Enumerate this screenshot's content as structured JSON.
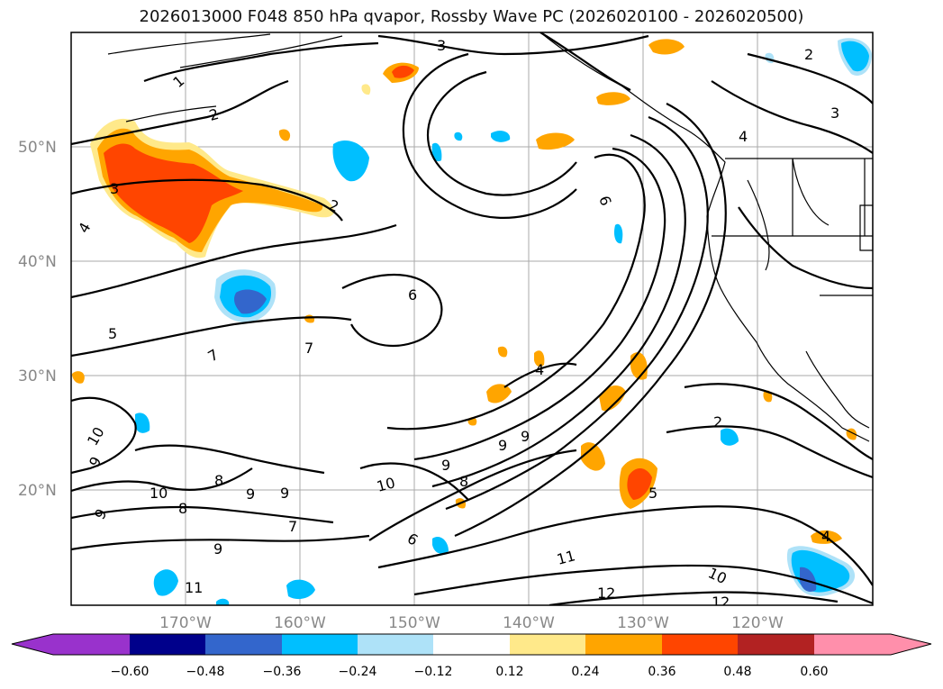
{
  "title": "2026013000 F048 850 hPa qvapor, Rossby Wave PC (2026020100 - 2026020500)",
  "lat_labels": [
    "50°N",
    "40°N",
    "30°N",
    "20°N"
  ],
  "lon_labels": [
    "170°W",
    "160°W",
    "150°W",
    "140°W",
    "130°W",
    "120°W"
  ],
  "contour_labels": [
    "3",
    "2",
    "1",
    "2",
    "3",
    "4",
    "3",
    "2",
    "4",
    "6",
    "5",
    "7",
    "7",
    "4",
    "2",
    "10",
    "9",
    "8",
    "10",
    "9",
    "9",
    "8",
    "7",
    "9",
    "9",
    "9",
    "8",
    "10",
    "6",
    "5",
    "11",
    "11",
    "12",
    "10",
    "12",
    "9",
    "9",
    "4",
    "7",
    "6"
  ],
  "colorbar": {
    "ticks": [
      "−0.60",
      "−0.48",
      "−0.36",
      "−0.24",
      "−0.12",
      "0.12",
      "0.24",
      "0.36",
      "0.48",
      "0.60"
    ],
    "colors": [
      "#9932cc",
      "#00008b",
      "#3366cc",
      "#00bfff",
      "#aee2f8",
      "#ffffff",
      "#ffe98a",
      "#ffa500",
      "#ff4500",
      "#b22222",
      "#ff8fab"
    ]
  }
}
